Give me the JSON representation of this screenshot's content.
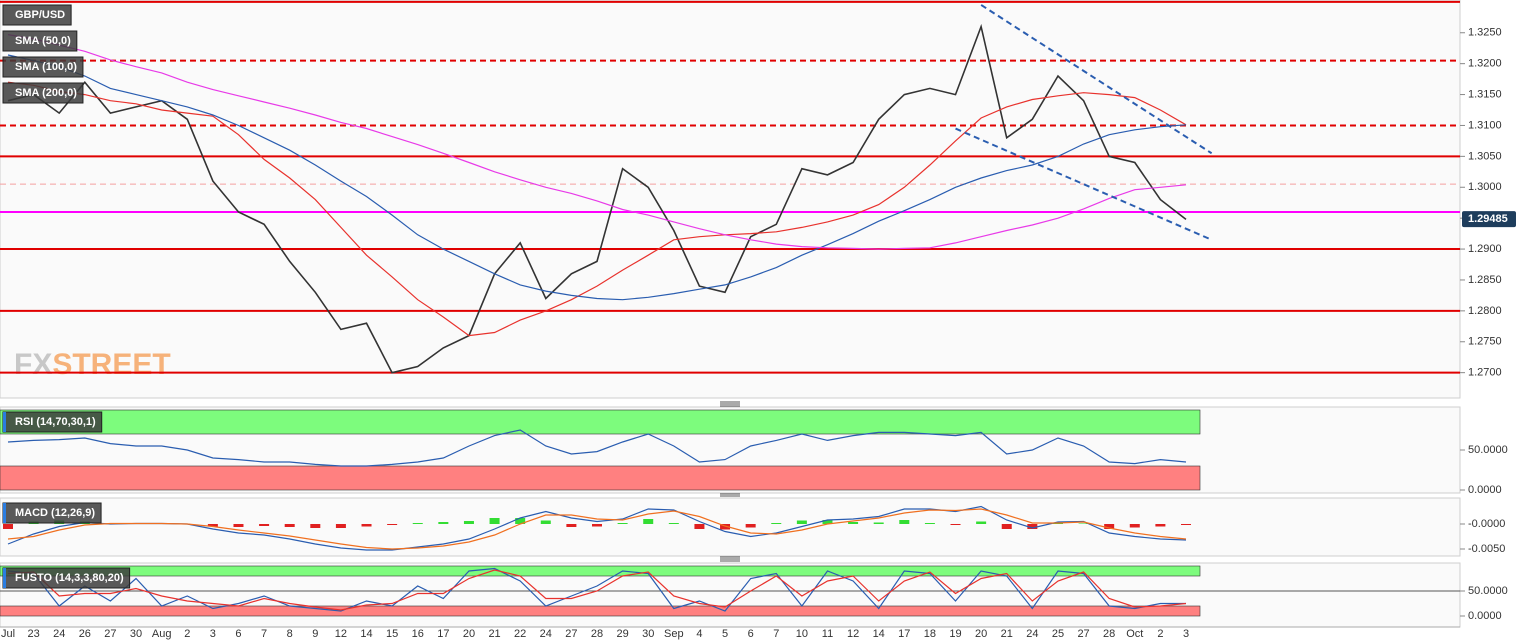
{
  "chart_data": [
    {
      "type": "line",
      "categories": [
        "Jul",
        "23",
        "24",
        "26",
        "27",
        "30",
        "Aug",
        "2",
        "3",
        "6",
        "7",
        "8",
        "9",
        "12",
        "14",
        "15",
        "16",
        "17",
        "20",
        "21",
        "22",
        "24",
        "27",
        "28",
        "29",
        "30",
        "Sep",
        "4",
        "5",
        "6",
        "7",
        "10",
        "11",
        "12",
        "14",
        "17",
        "18",
        "19",
        "20",
        "21",
        "24",
        "25",
        "27",
        "28",
        "Oct",
        "2",
        "3"
      ],
      "series": [
        {
          "name": "GBP/USD",
          "color": "#333333",
          "values": [
            1.314,
            1.315,
            1.312,
            1.317,
            1.312,
            1.313,
            1.314,
            1.311,
            1.301,
            1.296,
            1.294,
            1.288,
            1.283,
            1.277,
            1.278,
            1.27,
            1.271,
            1.274,
            1.276,
            1.286,
            1.291,
            1.282,
            1.286,
            1.288,
            1.303,
            1.3,
            1.293,
            1.284,
            1.283,
            1.292,
            1.294,
            1.303,
            1.302,
            1.304,
            1.311,
            1.315,
            1.316,
            1.315,
            1.326,
            1.308,
            1.311,
            1.318,
            1.314,
            1.305,
            1.304,
            1.298,
            1.2948
          ]
        },
        {
          "name": "SMA (50,0)",
          "color": "#e8322d",
          "values": [
            1.317,
            1.3165,
            1.3155,
            1.315,
            1.314,
            1.3135,
            1.3125,
            1.312,
            1.3115,
            1.3085,
            1.3045,
            1.3015,
            1.298,
            1.2935,
            1.289,
            1.2855,
            1.2818,
            1.279,
            1.276,
            1.2765,
            1.2785,
            1.28,
            1.2818,
            1.284,
            1.2866,
            1.289,
            1.2915,
            1.292,
            1.2923,
            1.2925,
            1.2928,
            1.2935,
            1.2944,
            1.2955,
            1.2972,
            1.3,
            1.3036,
            1.3075,
            1.3112,
            1.313,
            1.3142,
            1.3148,
            1.3153,
            1.315,
            1.3145,
            1.3125,
            1.3101
          ]
        },
        {
          "name": "SMA (100,0)",
          "color": "#2a5db0",
          "values": [
            1.3214,
            1.3205,
            1.3195,
            1.318,
            1.316,
            1.315,
            1.314,
            1.313,
            1.3117,
            1.31,
            1.308,
            1.306,
            1.3036,
            1.301,
            1.2985,
            1.2955,
            1.2923,
            1.29,
            1.288,
            1.286,
            1.2842,
            1.2832,
            1.2825,
            1.282,
            1.2818,
            1.2822,
            1.2828,
            1.2835,
            1.2842,
            1.2855,
            1.287,
            1.289,
            1.2907,
            1.2925,
            1.2945,
            1.2962,
            1.298,
            1.3,
            1.3015,
            1.3027,
            1.3036,
            1.305,
            1.307,
            1.3085,
            1.3093,
            1.3098,
            1.3101
          ]
        },
        {
          "name": "SMA (200,0)",
          "color": "#e83ae8",
          "values": [
            1.3247,
            1.324,
            1.323,
            1.322,
            1.3206,
            1.3195,
            1.3185,
            1.317,
            1.3158,
            1.3148,
            1.3138,
            1.3128,
            1.3117,
            1.3105,
            1.3095,
            1.3082,
            1.3069,
            1.3055,
            1.304,
            1.3025,
            1.3012,
            1.3,
            1.299,
            1.2978,
            1.2964,
            1.2955,
            1.2944,
            1.2933,
            1.2923,
            1.2915,
            1.2908,
            1.2904,
            1.2902,
            1.2901,
            1.29,
            1.2901,
            1.2902,
            1.291,
            1.292,
            1.293,
            1.2939,
            1.295,
            1.2965,
            1.2982,
            1.2996,
            1.3,
            1.3004
          ]
        }
      ],
      "ylim": [
        1.2659,
        1.3303
      ],
      "yticks": [
        {
          "value": 1.27,
          "label": "1.2700"
        },
        {
          "value": 1.275,
          "label": "1.2750"
        },
        {
          "value": 1.28,
          "label": "1.2800"
        },
        {
          "value": 1.285,
          "label": "1.2850"
        },
        {
          "value": 1.29,
          "label": "1.2900"
        },
        {
          "value": 1.295,
          "label": "1.2950"
        },
        {
          "value": 1.3,
          "label": "1.3000"
        },
        {
          "value": 1.305,
          "label": "1.3050"
        },
        {
          "value": 1.31,
          "label": "1.3100"
        },
        {
          "value": 1.315,
          "label": "1.3150"
        },
        {
          "value": 1.32,
          "label": "1.3200"
        },
        {
          "value": 1.325,
          "label": "1.3250"
        }
      ],
      "levels": [
        {
          "value": 1.33,
          "color": "#e00000",
          "style": "solid"
        },
        {
          "value": 1.3205,
          "color": "#e00000",
          "style": "dashed"
        },
        {
          "value": 1.31,
          "color": "#e00000",
          "style": "dashed"
        },
        {
          "value": 1.305,
          "color": "#e00000",
          "style": "solid"
        },
        {
          "value": 1.3005,
          "color": "#f4a0a0",
          "style": "dashed"
        },
        {
          "value": 1.296,
          "color": "#ff00ff",
          "style": "solid"
        },
        {
          "value": 1.29,
          "color": "#e00000",
          "style": "solid"
        },
        {
          "value": 1.28,
          "color": "#e00000",
          "style": "solid"
        },
        {
          "value": 1.27,
          "color": "#e00000",
          "style": "solid"
        }
      ],
      "trendlines": [
        {
          "color": "#2a5db0",
          "points": [
            [
              38,
              1.3295
            ],
            [
              47,
              1.3055
            ]
          ]
        },
        {
          "color": "#2a5db0",
          "points": [
            [
              37,
              1.3095
            ],
            [
              47,
              1.2915
            ]
          ]
        }
      ],
      "last_price": 1.29485,
      "watermark": [
        "FX",
        "STREET"
      ]
    },
    {
      "type": "line",
      "title": "RSI (14,70,30,1)",
      "series": [
        {
          "color": "#2a5db0",
          "values": [
            60,
            62,
            63,
            65,
            58,
            55,
            55,
            50,
            40,
            38,
            35,
            35,
            32,
            30,
            30,
            32,
            35,
            40,
            55,
            68,
            75,
            55,
            45,
            48,
            60,
            70,
            55,
            35,
            38,
            55,
            62,
            70,
            62,
            68,
            72,
            72,
            70,
            68,
            72,
            45,
            50,
            65,
            55,
            35,
            33,
            38,
            35
          ]
        }
      ],
      "ylim": [
        0,
        100
      ],
      "yticks": [
        {
          "value": 0,
          "label": "0.0000"
        },
        {
          "value": 50,
          "label": "50.0000"
        }
      ],
      "bands": [
        {
          "from": 70,
          "to": 100,
          "color": "#7dfc7d"
        },
        {
          "from": 0,
          "to": 30,
          "color": "#ff8080"
        }
      ]
    },
    {
      "type": "macd",
      "title": "MACD (12,26,9)",
      "series": [
        {
          "color": "#2a5db0",
          "values": [
            -0.004,
            -0.002,
            -0.0005,
            0.0003,
            0.0,
            0.0001,
            0.0001,
            0.0,
            -0.001,
            -0.0018,
            -0.0022,
            -0.003,
            -0.004,
            -0.0048,
            -0.0052,
            -0.0052,
            -0.0046,
            -0.004,
            -0.003,
            -0.001,
            0.0012,
            0.0025,
            0.0012,
            0.0005,
            0.001,
            0.003,
            0.0028,
            0.0005,
            -0.0015,
            -0.0025,
            -0.0018,
            -0.0005,
            0.0008,
            0.001,
            0.0015,
            0.003,
            0.003,
            0.0025,
            0.0035,
            0.0008,
            -0.0008,
            0.0004,
            0.0005,
            -0.0018,
            -0.0025,
            -0.003,
            -0.0032
          ]
        },
        {
          "color": "#f07020",
          "values": [
            -0.003,
            -0.0025,
            -0.0012,
            -0.0002,
            0.0001,
            0.0001,
            0.0001,
            0.0,
            -0.0005,
            -0.0012,
            -0.0018,
            -0.0024,
            -0.0032,
            -0.004,
            -0.0047,
            -0.005,
            -0.0048,
            -0.0044,
            -0.0036,
            -0.0022,
            0.0,
            0.0018,
            0.0018,
            0.001,
            0.0008,
            0.002,
            0.0026,
            0.0015,
            -0.0004,
            -0.0018,
            -0.002,
            -0.0012,
            0.0,
            0.0006,
            0.0012,
            0.0022,
            0.0028,
            0.0027,
            0.003,
            0.0018,
            0.0002,
            0.0002,
            0.0004,
            -0.0008,
            -0.0018,
            -0.0025,
            -0.003
          ]
        }
      ],
      "histogram": {
        "up_color": "#33dd33",
        "down_color": "#e02020",
        "values": [
          -0.001,
          0.0005,
          0.0007,
          0.0005,
          -0.0001,
          0,
          0,
          0,
          -0.0005,
          -0.0006,
          -0.0004,
          -0.0006,
          -0.0008,
          -0.0008,
          -0.0005,
          -0.0002,
          0.0002,
          0.0004,
          0.0006,
          0.0012,
          0.0012,
          0.0007,
          -0.0006,
          -0.0005,
          0.0002,
          0.001,
          0.0002,
          -0.001,
          -0.0011,
          -0.0007,
          0.0002,
          0.0007,
          0.0008,
          0.0004,
          0.0003,
          0.0008,
          0.0002,
          -0.0002,
          0.0005,
          -0.001,
          -0.001,
          0.0002,
          0.0001,
          -0.001,
          -0.0007,
          -0.0005,
          -0.0002
        ]
      },
      "ylim": [
        -0.0062,
        0.0048
      ],
      "yticks": [
        {
          "value": -0.005,
          "label": "-0.0050"
        },
        {
          "value": 0,
          "label": "-0.0000"
        }
      ]
    },
    {
      "type": "line",
      "title": "FUSTO (14,3,3,80,20)",
      "series": [
        {
          "color": "#2a5db0",
          "values": [
            90,
            85,
            20,
            60,
            30,
            75,
            20,
            40,
            15,
            25,
            40,
            20,
            15,
            10,
            30,
            20,
            60,
            35,
            90,
            95,
            70,
            20,
            40,
            60,
            90,
            85,
            15,
            30,
            10,
            75,
            85,
            20,
            90,
            70,
            15,
            90,
            85,
            30,
            90,
            80,
            15,
            90,
            85,
            20,
            15,
            25,
            25
          ]
        },
        {
          "color": "#e8322d",
          "values": [
            85,
            88,
            40,
            45,
            45,
            55,
            40,
            30,
            25,
            20,
            35,
            25,
            18,
            12,
            22,
            25,
            45,
            45,
            75,
            92,
            80,
            35,
            35,
            50,
            80,
            88,
            40,
            25,
            18,
            50,
            80,
            40,
            70,
            80,
            30,
            70,
            88,
            45,
            75,
            85,
            30,
            70,
            88,
            35,
            18,
            20,
            25
          ]
        }
      ],
      "ylim": [
        0,
        100
      ],
      "yticks": [
        {
          "value": 0,
          "label": "0.0000"
        },
        {
          "value": 50,
          "label": "50.0000"
        }
      ],
      "bands": [
        {
          "from": 80,
          "to": 100,
          "color": "#7dfc7d"
        },
        {
          "from": 0,
          "to": 20,
          "color": "#ff8080"
        }
      ],
      "levels": [
        {
          "value": 50,
          "color": "#555555",
          "style": "solid"
        }
      ]
    }
  ]
}
